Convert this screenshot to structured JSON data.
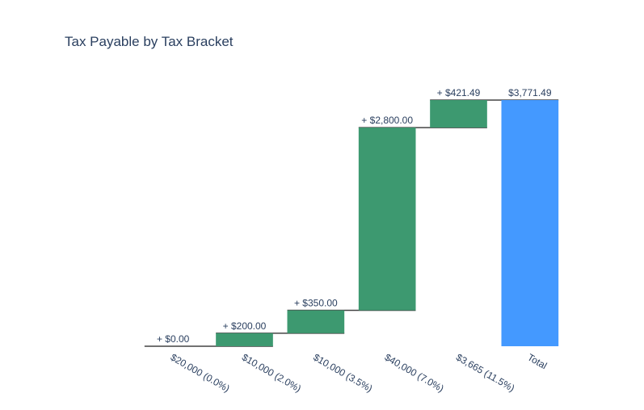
{
  "chart_data": {
    "type": "waterfall",
    "title": "Tax Payable by Tax Bracket",
    "categories": [
      "$20,000 (0.0%)",
      "$10,000 (2.0%)",
      "$10,000 (3.5%)",
      "$40,000 (7.0%)",
      "$3,665 (11.5%)",
      "Total"
    ],
    "values": [
      0,
      200,
      350,
      2800,
      421.49,
      3771.49
    ],
    "measure": [
      "relative",
      "relative",
      "relative",
      "relative",
      "relative",
      "total"
    ],
    "text": [
      "+ $0.00",
      "+ $200.00",
      "+ $350.00",
      "+ $2,800.00",
      "+ $421.49",
      "$3,771.49"
    ],
    "ylim": [
      0,
      3771.49
    ],
    "colors": {
      "increase": "#3d9970",
      "total": "#4499ff",
      "connector": "#444444"
    },
    "xlabel": "",
    "ylabel": "",
    "grid": false
  }
}
